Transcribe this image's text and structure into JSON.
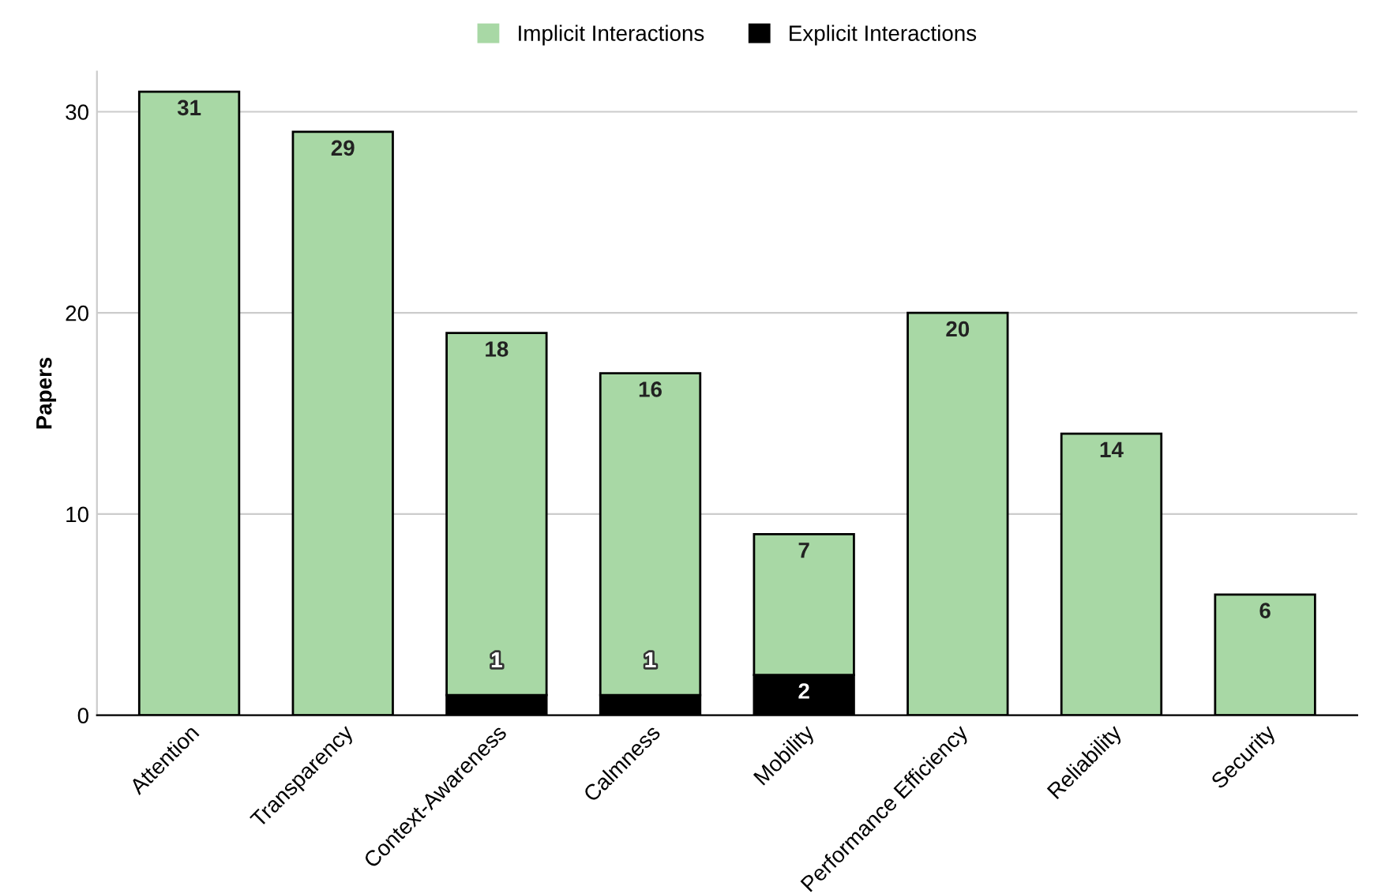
{
  "chart_data": {
    "type": "bar",
    "stacked": true,
    "ylabel": "Papers",
    "categories": [
      "Attention",
      "Transparency",
      "Context-Awareness",
      "Calmness",
      "Mobility",
      "Performance Efficiency",
      "Reliability",
      "Security"
    ],
    "series": [
      {
        "name": "Explicit Interactions",
        "color": "#000000",
        "values": [
          null,
          null,
          1,
          1,
          2,
          null,
          null,
          null
        ]
      },
      {
        "name": "Implicit Interactions",
        "color": "#a8d8a5",
        "values": [
          31,
          29,
          18,
          16,
          7,
          20,
          14,
          6
        ]
      }
    ],
    "ylim": [
      0,
      32
    ],
    "yticks": [
      0,
      10,
      20,
      30
    ],
    "grid": "y",
    "legend": "top",
    "data_labels": true
  }
}
